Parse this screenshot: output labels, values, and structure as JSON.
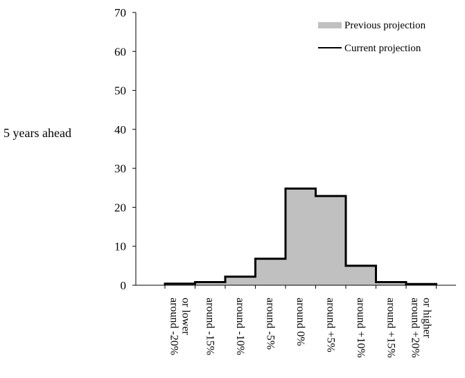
{
  "chart_data": {
    "type": "bar",
    "ylabel": "5 years ahead",
    "ylim": [
      0,
      70
    ],
    "yticks": [
      0,
      10,
      20,
      30,
      40,
      50,
      60,
      70
    ],
    "categories": [
      [
        "around -20%",
        "or lower"
      ],
      [
        "around -15%"
      ],
      [
        "around -10%"
      ],
      [
        "around -5%"
      ],
      [
        "around  0%"
      ],
      [
        "around +5%"
      ],
      [
        "around +10%"
      ],
      [
        "around +15%"
      ],
      [
        "around +20%",
        "or higher"
      ]
    ],
    "series": [
      {
        "name": "Previous projection",
        "style": "area",
        "color": "#c0c0c0",
        "values": [
          0.4,
          0.8,
          2.2,
          6.8,
          24.8,
          22.9,
          5.0,
          0.8,
          0.3
        ]
      },
      {
        "name": "Current projection",
        "style": "step-line",
        "color": "#000000",
        "values": [
          0.4,
          0.8,
          2.2,
          6.8,
          24.8,
          22.9,
          5.0,
          0.8,
          0.3
        ]
      }
    ],
    "legend_position": "top-right",
    "grid": false
  }
}
